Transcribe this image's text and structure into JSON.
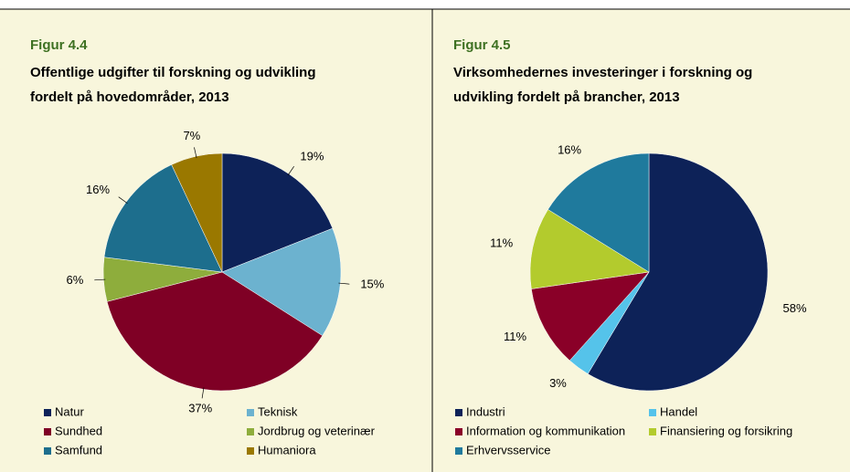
{
  "chart_data": [
    {
      "type": "pie",
      "label": "Figur 4.4",
      "title": [
        "Offentlige udgifter til forskning og udvikling",
        "fordelt på hovedområder, 2013"
      ],
      "categories": [
        "Natur",
        "Teknisk",
        "Sundhed",
        "Jordbrug  og veterinær",
        "Samfund",
        "Humaniora"
      ],
      "values": [
        19,
        15,
        37,
        6,
        16,
        7
      ],
      "value_labels": [
        "19%",
        "15%",
        "37%",
        "6%",
        "16%",
        "7%"
      ],
      "colors": [
        "#0d2258",
        "#6cb2cf",
        "#7f0025",
        "#8ead3c",
        "#1d6e8d",
        "#9a7800"
      ],
      "leader_lines": true
    },
    {
      "type": "pie",
      "label": "Figur 4.5",
      "title": [
        "Virksomhedernes investeringer i forskning og",
        "udvikling fordelt på brancher, 2013"
      ],
      "categories": [
        "Industri",
        "Handel",
        "Information og kommunikation",
        "Finansiering og forsikring",
        "Erhvervsservice"
      ],
      "values": [
        58,
        3,
        11,
        11,
        16
      ],
      "value_labels": [
        "58%",
        "3%",
        "11%",
        "11%",
        "16%"
      ],
      "colors": [
        "#0d2258",
        "#55c3ea",
        "#8a0028",
        "#b3cb2d",
        "#1f7a9d"
      ],
      "leader_lines": false
    }
  ]
}
